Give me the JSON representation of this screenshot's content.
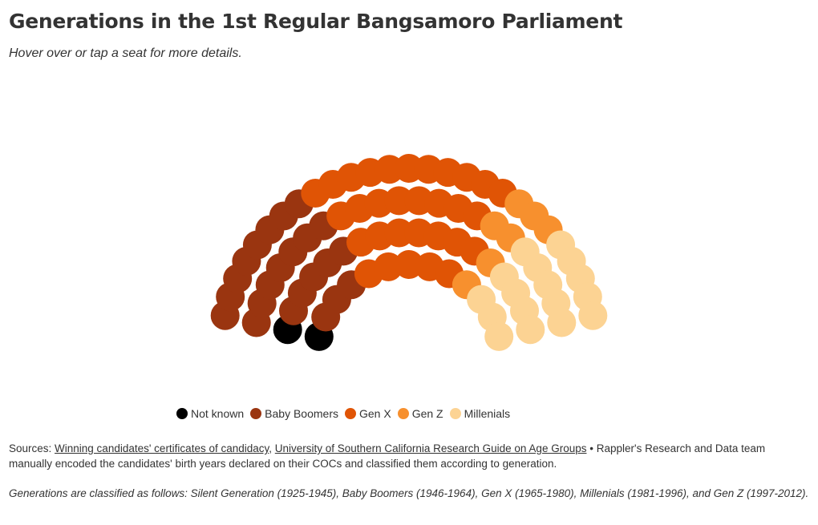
{
  "header": {
    "title": "Generations in the 1st Regular Bangsamoro Parliament",
    "subtitle": "Hover over or tap a seat for more details."
  },
  "chart_data": {
    "type": "parliament",
    "total_seats": 80,
    "rows": 4,
    "categories": [
      {
        "name": "Not known",
        "seats": 2,
        "color": "#000000"
      },
      {
        "name": "Baby Boomers",
        "seats": 23,
        "color": "#9a3510"
      },
      {
        "name": "Gen X",
        "seats": 31,
        "color": "#e05405"
      },
      {
        "name": "Gen Z",
        "seats": 7,
        "color": "#f7902e"
      },
      {
        "name": "Millenials",
        "seats": 17,
        "color": "#fcd393"
      }
    ]
  },
  "footer": {
    "sources_label": "Sources: ",
    "source_link_1": "Winning candidates' certificates of candidacy",
    "separator": ", ",
    "source_link_2": "University of Southern California Research Guide on Age Groups",
    "sources_text": " • Rappler's Research and Data team manually encoded the candidates' birth years declared on their COCs and classified them according to generation.",
    "note": "Generations are classified as follows: Silent Generation (1925-1945), Baby Boomers (1946-1964), Gen X (1965-1980), Millenials (1981-1996), and Gen Z (1997-2012)."
  }
}
